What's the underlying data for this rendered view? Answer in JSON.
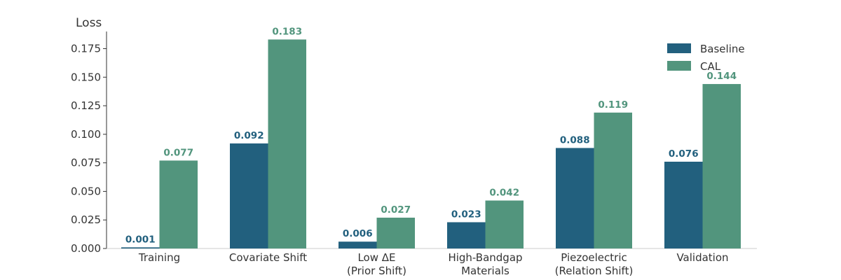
{
  "chart_data": {
    "type": "bar",
    "title": "",
    "xlabel": "",
    "ylabel": "Loss",
    "ylim": [
      0,
      0.19
    ],
    "yticks": [
      "0.000",
      "0.025",
      "0.050",
      "0.075",
      "0.100",
      "0.125",
      "0.150",
      "0.175"
    ],
    "categories": [
      [
        "Training"
      ],
      [
        "Covariate Shift"
      ],
      [
        "Low ΔE",
        "(Prior Shift)"
      ],
      [
        "High-Bandgap",
        "Materials"
      ],
      [
        "Piezoelectric",
        "(Relation Shift)"
      ],
      [
        "Validation"
      ]
    ],
    "series": [
      {
        "name": "Baseline",
        "color": "#22607e",
        "values": [
          0.001,
          0.092,
          0.006,
          0.023,
          0.088,
          0.076
        ],
        "labels": [
          "0.001",
          "0.092",
          "0.006",
          "0.023",
          "0.088",
          "0.076"
        ]
      },
      {
        "name": "CAL",
        "color": "#52957d",
        "values": [
          0.077,
          0.183,
          0.027,
          0.042,
          0.119,
          0.144
        ],
        "labels": [
          "0.077",
          "0.183",
          "0.027",
          "0.042",
          "0.119",
          "0.144"
        ]
      }
    ],
    "legend": "top-right",
    "grid": false
  }
}
